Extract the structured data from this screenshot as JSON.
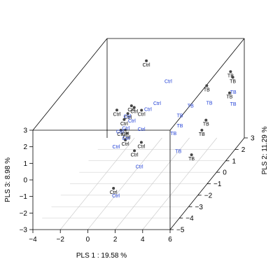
{
  "chart_data": {
    "type": "scatter",
    "title": "",
    "xlabel": "PLS 1 :  19.58 %",
    "ylabel": "PLS 3:  8.98 %",
    "zlabel": "PLS 2: 11.29 %",
    "xlim": [
      -4,
      6
    ],
    "ylim": [
      -3,
      3
    ],
    "zlim": [
      -5,
      3
    ],
    "x_ticks": [
      "−4",
      "−2",
      "0",
      "2",
      "4",
      "6"
    ],
    "y_ticks": [
      "−3",
      "−2",
      "−1",
      "0",
      "1",
      "2",
      "3"
    ],
    "z_ticks": [
      "−5",
      "−4",
      "−3",
      "−2",
      "−1",
      "0",
      "1",
      "2",
      "3"
    ],
    "grid": "floor",
    "colors": {
      "dot": "#444444",
      "ctrl_label": "#000000",
      "tb_label": "#1f3fd6",
      "box": "#000000",
      "grid": "#c8c8c8"
    },
    "points": [
      {
        "label": "Ctrl",
        "x": -0.8,
        "y": 2.0,
        "z": 2.5,
        "dot": true
      },
      {
        "label": "Ctrl",
        "x": -0.6,
        "y": 0.6,
        "z": 0.6,
        "dot": true
      },
      {
        "label": "Ctrl",
        "x": -0.8,
        "y": 0.2,
        "z": 0.5,
        "dot": true
      },
      {
        "label": "Ctrl",
        "x": -1.1,
        "y": -0.6,
        "z": 0.2,
        "dot": true
      },
      {
        "label": "Ctrl",
        "x": -1.2,
        "y": -0.3,
        "z": 0.7,
        "dot": true
      },
      {
        "label": "Ctrl",
        "x": -0.3,
        "y": -0.1,
        "z": -0.5,
        "dot": true
      },
      {
        "label": "Ctrl",
        "x": 0.2,
        "y": 0.4,
        "z": 0.5,
        "dot": true
      },
      {
        "label": "Ctrl",
        "x": -0.4,
        "y": 0.5,
        "z": 0.6,
        "dot": true
      },
      {
        "label": "Ctrl",
        "x": -0.1,
        "y": -0.5,
        "z": -0.8,
        "dot": true
      },
      {
        "label": "Ctrl",
        "x": -0.2,
        "y": -0.3,
        "z": -0.5,
        "dot": true
      },
      {
        "label": "Ctrl",
        "x": -1.8,
        "y": 0.2,
        "z": 0.8,
        "dot": true
      },
      {
        "label": "Ctrl",
        "x": 0.9,
        "y": -0.8,
        "z": -1.3,
        "dot": true
      },
      {
        "label": "Ctrl",
        "x": 1.2,
        "y": -0.5,
        "z": -1.0,
        "dot": true
      },
      {
        "label": "Ctrl",
        "x": 1.2,
        "y": -1.2,
        "z": -4.0,
        "dot": true
      },
      {
        "label": "Ctrl",
        "x": 1.0,
        "y": 1.0,
        "z": 2.2,
        "dot": false
      },
      {
        "label": "Ctrl",
        "x": 1.0,
        "y": 0.5,
        "z": 1.0,
        "dot": false
      },
      {
        "label": "Ctrl",
        "x": 0.4,
        "y": 0.2,
        "z": 0.9,
        "dot": false
      },
      {
        "label": "Ctrl",
        "x": -0.7,
        "y": 0.2,
        "z": 0.3,
        "dot": false
      },
      {
        "label": "Ctrl",
        "x": -0.3,
        "y": 0.0,
        "z": 0.2,
        "dot": false
      },
      {
        "label": "Ctrl",
        "x": -0.4,
        "y": -0.1,
        "z": -0.3,
        "dot": false
      },
      {
        "label": "Ctrl",
        "x": 0.6,
        "y": -0.3,
        "z": -0.1,
        "dot": false
      },
      {
        "label": "Ctrl",
        "x": -0.2,
        "y": -0.5,
        "z": -0.6,
        "dot": false
      },
      {
        "label": "Ctrl",
        "x": -1.1,
        "y": -0.6,
        "z": 0.1,
        "dot": false
      },
      {
        "label": "Ctrl",
        "x": -0.7,
        "y": -0.8,
        "z": -0.9,
        "dot": false
      },
      {
        "label": "Ctrl",
        "x": 1.6,
        "y": -1.4,
        "z": -1.8,
        "dot": false
      },
      {
        "label": "Ctrl",
        "x": 1.1,
        "y": -1.9,
        "z": -3.6,
        "dot": false
      },
      {
        "label": "TB",
        "x": 5.0,
        "y": 1.0,
        "z": 3.0,
        "dot": true
      },
      {
        "label": "TB",
        "x": 3.6,
        "y": 0.5,
        "z": 2.5,
        "dot": true
      },
      {
        "label": "TB",
        "x": 5.3,
        "y": 0.8,
        "z": 2.8,
        "dot": true
      },
      {
        "label": "TB",
        "x": 5.4,
        "y": 0.2,
        "z": 2.3,
        "dot": true
      },
      {
        "label": "TB",
        "x": 4.8,
        "y": -0.6,
        "z": 0.2,
        "dot": true
      },
      {
        "label": "TB",
        "x": 4.9,
        "y": -0.2,
        "z": 0.5,
        "dot": true
      },
      {
        "label": "TB",
        "x": 5.4,
        "y": -0.7,
        "z": -1.8,
        "dot": true
      },
      {
        "label": "TB",
        "x": 5.6,
        "y": 0.2,
        "z": 2.4,
        "dot": false
      },
      {
        "label": "TB",
        "x": 2.8,
        "y": -0.1,
        "z": 0.8,
        "dot": false
      },
      {
        "label": "TB",
        "x": 3.1,
        "y": 0.0,
        "z": 1.5,
        "dot": false
      },
      {
        "label": "TB",
        "x": 4.4,
        "y": 0.1,
        "z": 1.6,
        "dot": false
      },
      {
        "label": "TB",
        "x": 6.0,
        "y": -0.1,
        "z": 1.8,
        "dot": false
      },
      {
        "label": "TB",
        "x": 3.0,
        "y": -0.5,
        "z": -0.2,
        "dot": false
      },
      {
        "label": "TB",
        "x": 4.1,
        "y": -0.8,
        "z": -1.3,
        "dot": false
      },
      {
        "label": "TB",
        "x": 3.2,
        "y": -0.3,
        "z": 0.2,
        "dot": false
      }
    ]
  }
}
